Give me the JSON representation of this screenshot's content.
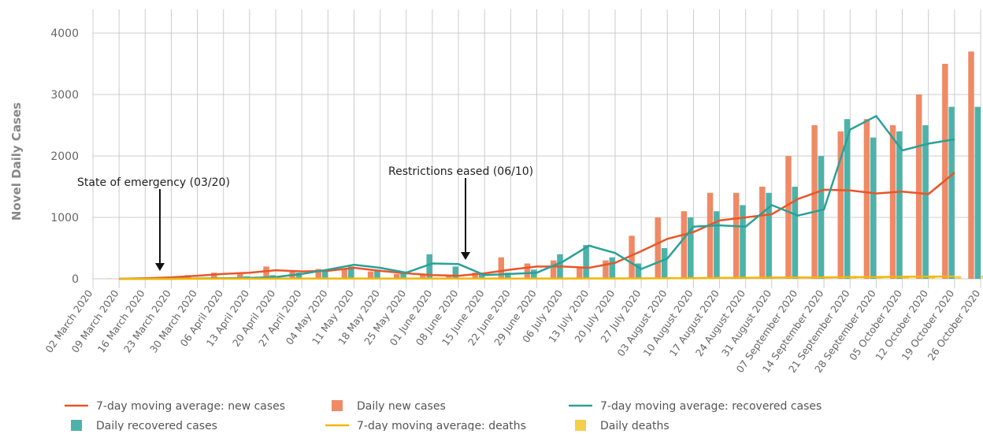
{
  "chart_data": {
    "type": "bar",
    "y_label": "Novel Daily Cases",
    "annotations": [
      {
        "text": "State of emergency (03/20)"
      },
      {
        "text": "Restrictions eased (06/10)"
      }
    ],
    "categories": [
      "02 March 2020",
      "09 March 2020",
      "16 March 2020",
      "23 March 2020",
      "30 March 2020",
      "06 April 2020",
      "13 April 2020",
      "20 April 2020",
      "27 April 2020",
      "04 May 2020",
      "11 May 2020",
      "18 May 2020",
      "25 May 2020",
      "01 June 2020",
      "08 June 2020",
      "15 June 2020",
      "22 June 2020",
      "29 June 2020",
      "06 July 2020",
      "13 July 2020",
      "20 July 2020",
      "27 July 2020",
      "03 August 2020",
      "10 August 2020",
      "17 August 2020",
      "24 August 2020",
      "31 August 2020",
      "07 September 2020",
      "14 September 2020",
      "21 September 2020",
      "28 September 2020",
      "05 October 2020",
      "12 October 2020",
      "19 October 2020",
      "26 October 2020"
    ],
    "ylim": [
      0,
      4000
    ],
    "yticks": [
      0,
      1000,
      2000,
      3000,
      4000
    ],
    "grid": true,
    "series": [
      {
        "name": "7-day moving average: new cases",
        "color": "#e8562a",
        "kind": "line",
        "values": [
          null,
          0,
          10,
          25,
          50,
          80,
          100,
          140,
          120,
          130,
          180,
          130,
          90,
          60,
          50,
          90,
          150,
          200,
          200,
          180,
          260,
          450,
          650,
          760,
          950,
          1000,
          1050,
          1300,
          1450,
          1440,
          1390,
          1420,
          1380,
          1730,
          null
        ]
      },
      {
        "name": "Daily new cases",
        "color": "#ee8a66",
        "kind": "bar",
        "values": [
          null,
          5,
          15,
          30,
          60,
          100,
          90,
          200,
          140,
          160,
          170,
          120,
          80,
          60,
          40,
          100,
          350,
          250,
          300,
          200,
          300,
          700,
          1000,
          1100,
          1400,
          1400,
          1500,
          2000,
          2500,
          2400,
          2600,
          2500,
          3000,
          3500,
          3700
        ]
      },
      {
        "name": "7-day moving average: recovered cases",
        "color": "#2aa198",
        "kind": "line",
        "values": [
          null,
          0,
          0,
          0,
          5,
          10,
          15,
          30,
          80,
          150,
          230,
          180,
          100,
          250,
          240,
          60,
          80,
          100,
          280,
          540,
          420,
          160,
          330,
          850,
          870,
          850,
          1200,
          1030,
          1130,
          2430,
          2650,
          2090,
          2200,
          2270,
          null
        ]
      },
      {
        "name": "Daily recovered cases",
        "color": "#4db3aa",
        "kind": "bar",
        "values": [
          null,
          0,
          0,
          5,
          10,
          20,
          40,
          60,
          100,
          150,
          200,
          150,
          120,
          400,
          200,
          80,
          100,
          150,
          400,
          550,
          350,
          250,
          500,
          1000,
          1100,
          1200,
          1400,
          1500,
          2000,
          2600,
          2300,
          2400,
          2500,
          2800,
          2800
        ]
      },
      {
        "name": "7-day moving average: deaths",
        "color": "#f2b705",
        "kind": "line",
        "values": [
          null,
          0,
          0,
          0,
          1,
          2,
          3,
          4,
          5,
          5,
          5,
          5,
          5,
          5,
          5,
          5,
          5,
          5,
          5,
          6,
          7,
          8,
          10,
          12,
          15,
          18,
          20,
          22,
          25,
          28,
          30,
          33,
          35,
          38,
          null
        ]
      },
      {
        "name": "Daily deaths",
        "color": "#f5cf4a",
        "kind": "bar",
        "values": [
          null,
          0,
          0,
          1,
          2,
          3,
          4,
          5,
          5,
          5,
          5,
          5,
          5,
          5,
          5,
          5,
          5,
          5,
          6,
          7,
          8,
          10,
          12,
          15,
          18,
          20,
          22,
          25,
          28,
          30,
          33,
          35,
          40,
          45,
          50
        ]
      }
    ]
  }
}
